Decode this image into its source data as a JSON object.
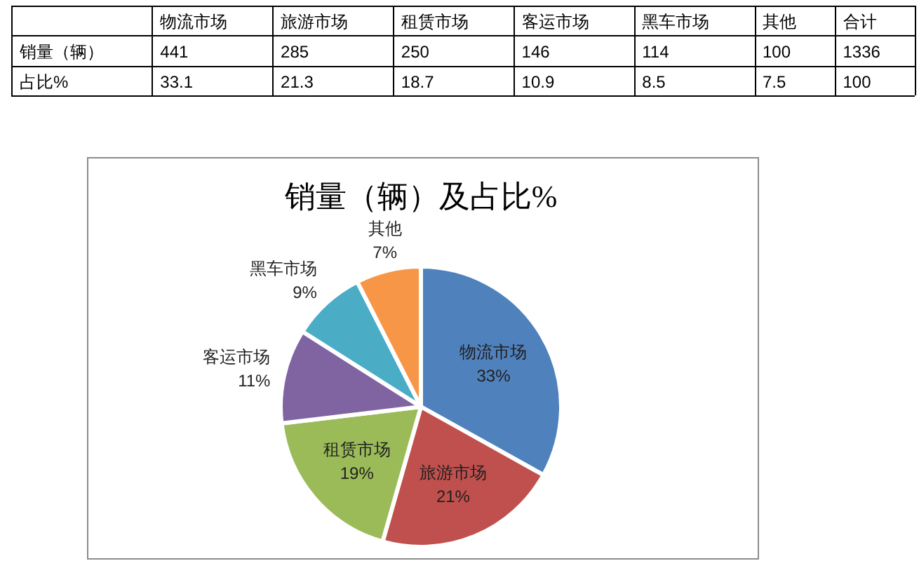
{
  "chart_data": [
    {
      "type": "other",
      "categories": [
        "物流市场",
        "旅游市场",
        "租赁市场",
        "客运市场",
        "黑车市场",
        "其他",
        "合计"
      ],
      "series": [
        {
          "name": "销量（辆）",
          "values": [
            441,
            285,
            250,
            146,
            114,
            100,
            1336
          ]
        },
        {
          "name": "占比%",
          "values": [
            33.1,
            21.3,
            18.7,
            10.9,
            8.5,
            7.5,
            100
          ]
        }
      ],
      "data_labels": true
    },
    {
      "type": "pie",
      "title": "销量（辆）及占比%",
      "categories": [
        "物流市场",
        "旅游市场",
        "租赁市场",
        "客运市场",
        "黑车市场",
        "其他"
      ],
      "values": [
        33.1,
        21.3,
        18.7,
        10.9,
        8.5,
        7.5
      ],
      "value_labels": [
        "33%",
        "21%",
        "19%",
        "11%",
        "9%",
        "7%"
      ],
      "colors": [
        "#4f81bd",
        "#c0504d",
        "#9bbb59",
        "#8064a2",
        "#4bacc6",
        "#f79646"
      ]
    }
  ]
}
